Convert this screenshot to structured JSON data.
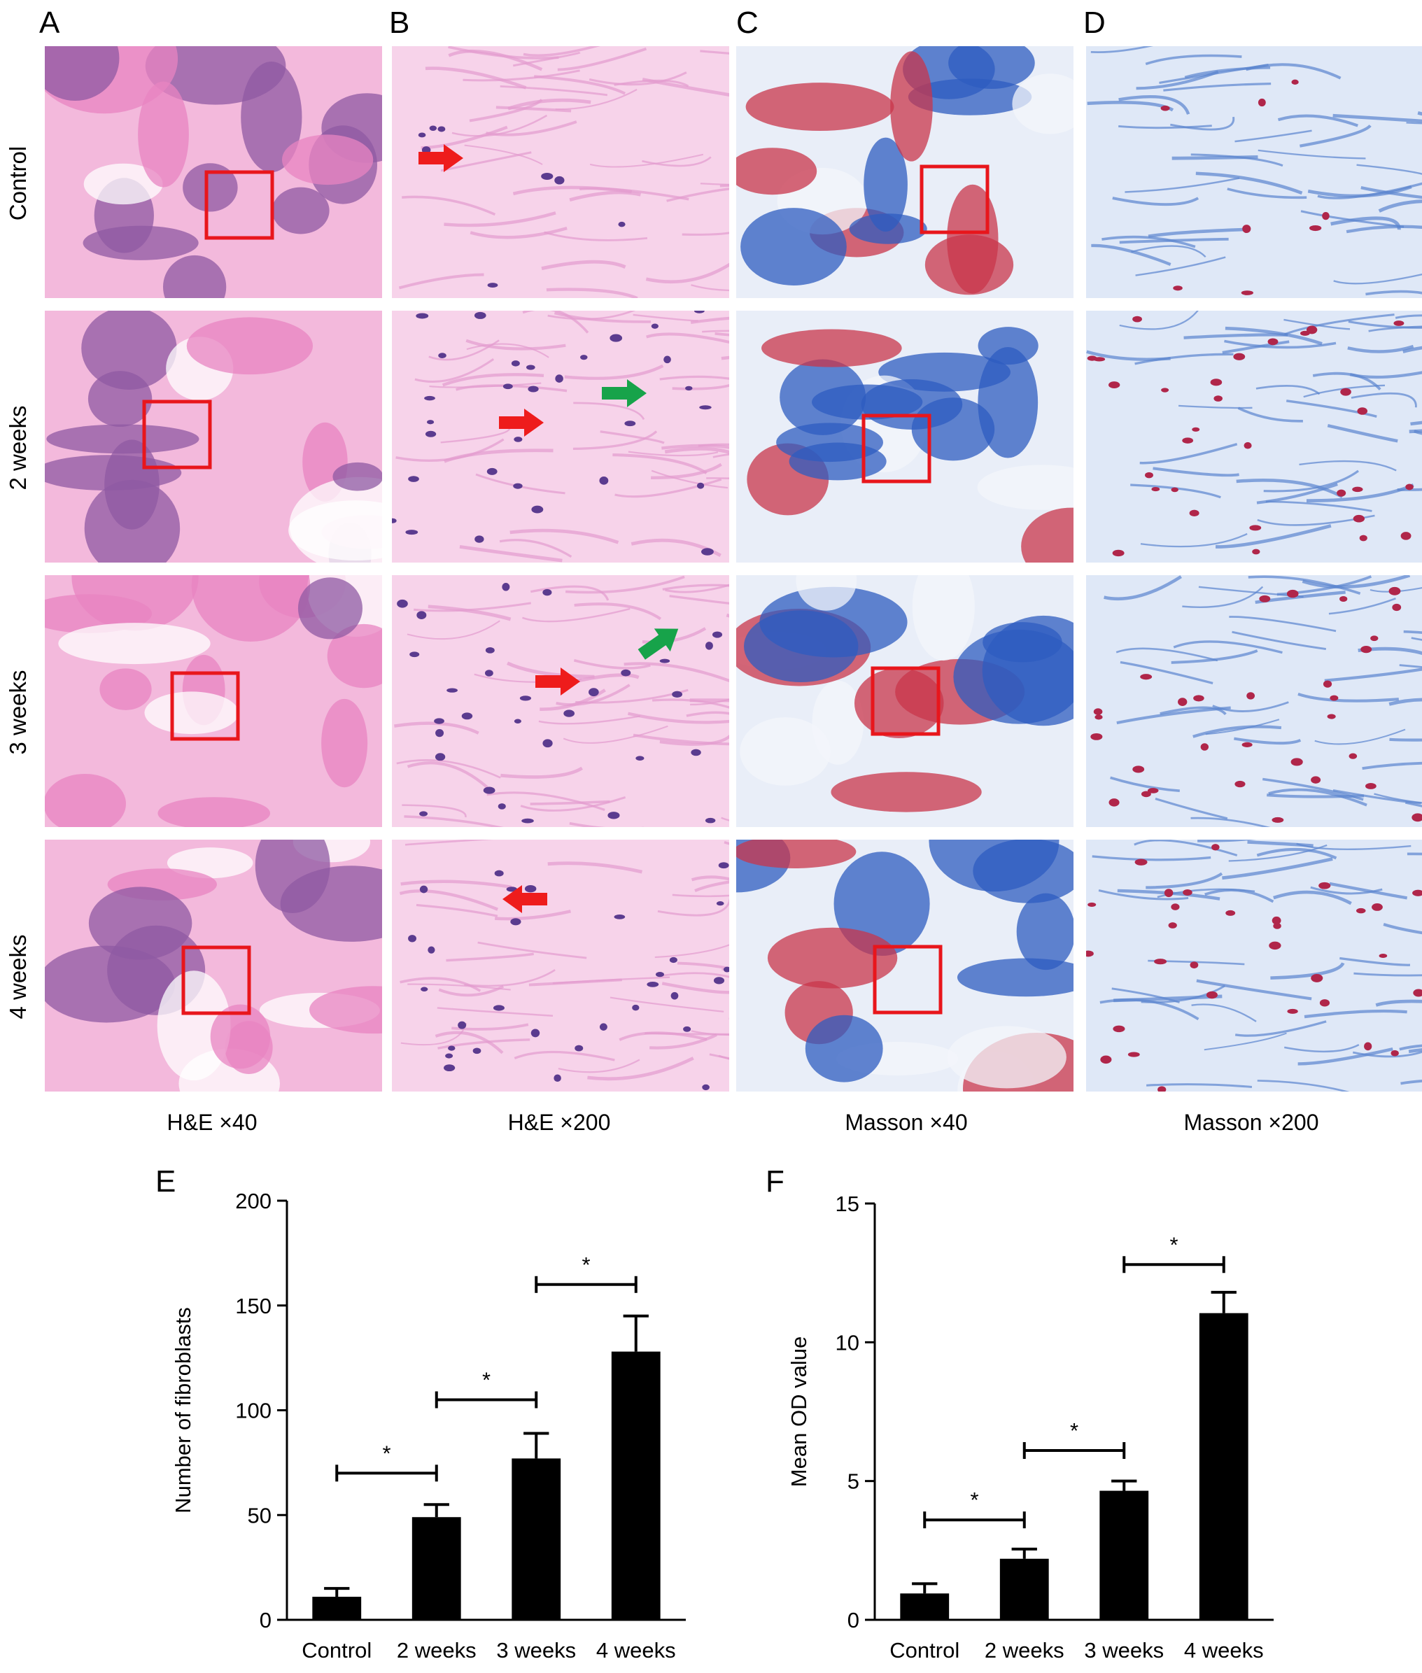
{
  "panel_letters": [
    "A",
    "B",
    "C",
    "D",
    "E",
    "F"
  ],
  "row_labels": [
    "Control",
    "2 weeks",
    "3 weeks",
    "4 weeks"
  ],
  "column_labels": [
    "H&E ×40",
    "H&E ×200",
    "Masson ×40",
    "Masson ×200"
  ],
  "colors": {
    "he_pink": "#f2a7d2",
    "he_purple": "#8f5aa3",
    "masson_blue": "#2d5cc0",
    "masson_red": "#c8354b",
    "roi_box": "#e8161c",
    "arrow_red": "#ee1c1c",
    "arrow_green": "#17a34a",
    "bar_fill": "#000000"
  },
  "chart_data": [
    {
      "type": "bar",
      "panel": "E",
      "categories": [
        "Control",
        "2 weeks",
        "3 weeks",
        "4 weeks"
      ],
      "values": [
        11,
        49,
        77,
        128
      ],
      "errors": [
        4,
        6,
        12,
        17
      ],
      "xlabel": "",
      "ylabel": "Number of fibroblasts",
      "ylim": [
        0,
        200
      ],
      "yticks": [
        0,
        50,
        100,
        150,
        200
      ],
      "significance": [
        {
          "from": 0,
          "to": 1,
          "y": 70,
          "label": "*"
        },
        {
          "from": 1,
          "to": 2,
          "y": 105,
          "label": "*"
        },
        {
          "from": 2,
          "to": 3,
          "y": 160,
          "label": "*"
        }
      ]
    },
    {
      "type": "bar",
      "panel": "F",
      "categories": [
        "Control",
        "2 weeks",
        "3 weeks",
        "4 weeks"
      ],
      "values": [
        0.95,
        2.2,
        4.65,
        11.05
      ],
      "errors": [
        0.35,
        0.35,
        0.35,
        0.75
      ],
      "xlabel": "",
      "ylabel": "Mean OD value",
      "ylim": [
        0,
        15
      ],
      "yticks": [
        0,
        5,
        10,
        15
      ],
      "significance": [
        {
          "from": 0,
          "to": 1,
          "y": 3.6,
          "label": "*"
        },
        {
          "from": 1,
          "to": 2,
          "y": 6.1,
          "label": "*"
        },
        {
          "from": 2,
          "to": 3,
          "y": 12.8,
          "label": "*"
        }
      ]
    }
  ]
}
